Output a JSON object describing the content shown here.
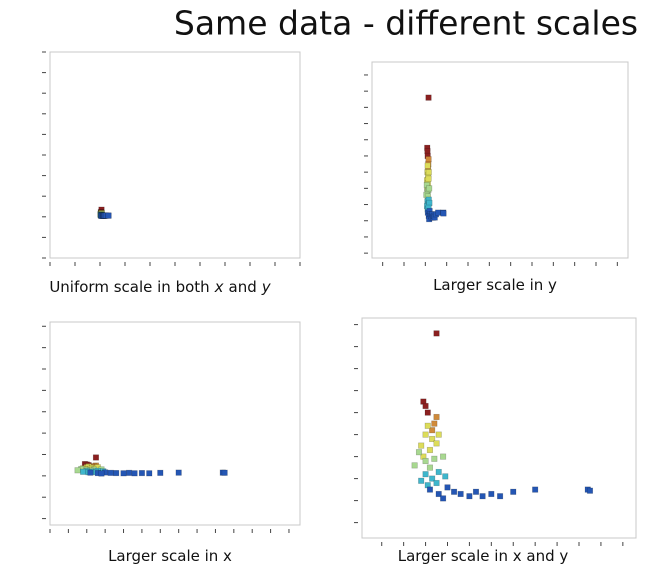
{
  "title": "Same data - different scales",
  "chart_data": [
    {
      "type": "scatter",
      "title": [
        "Uniform scale in both",
        "x",
        "and",
        "y"
      ],
      "xlim": [
        -50,
        200
      ],
      "ylim": [
        -50,
        200
      ],
      "xticks": [
        -50,
        -25,
        0,
        25,
        50,
        75,
        100,
        125,
        150,
        175,
        200
      ],
      "yticks": [
        -50,
        -25,
        0,
        25,
        50,
        75,
        100,
        125,
        150,
        175,
        200
      ],
      "series": [
        {
          "color": "#8b2020",
          "x": [
            1.5,
            0.9,
            1.0,
            1.1
          ],
          "values": [
            8.6,
            5.5,
            5.3,
            5.0
          ]
        },
        {
          "color": "#d08a3a",
          "x": [
            1.5,
            1.4,
            1.3
          ],
          "values": [
            4.8,
            4.5,
            4.2
          ]
        },
        {
          "color": "#dcdc5a",
          "x": [
            1.1,
            1.0,
            1.3,
            0.8,
            1.2,
            1.5,
            0.9,
            1.6
          ],
          "values": [
            4.4,
            4.0,
            3.8,
            3.5,
            3.3,
            3.6,
            3.0,
            4.0
          ]
        },
        {
          "color": "#a8d890",
          "x": [
            0.7,
            1.0,
            1.4,
            0.5,
            1.2,
            1.8
          ],
          "values": [
            3.2,
            2.8,
            2.9,
            2.6,
            2.5,
            3.0
          ]
        },
        {
          "color": "#3fb6cc",
          "x": [
            1.0,
            1.3,
            1.6,
            0.8,
            1.9,
            1.1,
            1.5
          ],
          "values": [
            2.2,
            2.0,
            2.3,
            1.9,
            2.1,
            1.7,
            1.8
          ]
        },
        {
          "color": "#2456b4",
          "x": [
            1.2,
            1.6,
            2.0,
            2.3,
            1.8,
            2.6,
            3.0,
            3.3,
            3.6,
            4.0,
            4.4,
            5.0,
            6.0,
            8.4,
            8.5
          ],
          "values": [
            1.5,
            1.3,
            1.6,
            1.4,
            1.1,
            1.3,
            1.2,
            1.4,
            1.2,
            1.3,
            1.2,
            1.4,
            1.5,
            1.5,
            1.45
          ]
        }
      ]
    },
    {
      "type": "scatter",
      "title": [
        "Larger scale in y"
      ],
      "xlim": [
        -25,
        95
      ],
      "ylim": [
        -1.3,
        10.8
      ],
      "xticks": [
        -20,
        -10,
        0,
        10,
        20,
        30,
        40,
        50,
        60,
        70,
        80,
        90
      ],
      "yticks": [
        -1,
        0,
        1,
        2,
        3,
        4,
        5,
        6,
        7,
        8,
        9,
        10
      ],
      "series": [
        {
          "color": "#8b2020",
          "x": [
            1.5,
            0.9,
            1.0,
            1.1
          ],
          "values": [
            8.6,
            5.5,
            5.3,
            5.0
          ]
        },
        {
          "color": "#d08a3a",
          "x": [
            1.5,
            1.4,
            1.3
          ],
          "values": [
            4.8,
            4.5,
            4.2
          ]
        },
        {
          "color": "#dcdc5a",
          "x": [
            1.1,
            1.0,
            1.3,
            0.8,
            1.2,
            1.5,
            0.9,
            1.6
          ],
          "values": [
            4.4,
            4.0,
            3.8,
            3.5,
            3.3,
            3.6,
            3.0,
            4.0
          ]
        },
        {
          "color": "#a8d890",
          "x": [
            0.7,
            1.0,
            1.4,
            0.5,
            1.2,
            1.8
          ],
          "values": [
            3.2,
            2.8,
            2.9,
            2.6,
            2.5,
            3.0
          ]
        },
        {
          "color": "#3fb6cc",
          "x": [
            1.0,
            1.3,
            1.6,
            0.8,
            1.9,
            1.1,
            1.5
          ],
          "values": [
            2.2,
            2.0,
            2.3,
            1.9,
            2.1,
            1.7,
            1.8
          ]
        },
        {
          "color": "#2456b4",
          "x": [
            1.2,
            1.6,
            2.0,
            2.3,
            1.8,
            2.6,
            3.0,
            3.3,
            3.6,
            4.0,
            4.4,
            5.0,
            6.0,
            8.4,
            8.5
          ],
          "values": [
            1.5,
            1.3,
            1.6,
            1.4,
            1.1,
            1.3,
            1.2,
            1.4,
            1.2,
            1.3,
            1.2,
            1.4,
            1.5,
            1.5,
            1.45
          ]
        }
      ]
    },
    {
      "type": "scatter",
      "title": [
        "Larger scale in x"
      ],
      "xlim": [
        -1,
        12.6
      ],
      "ylim": [
        -23,
        72
      ],
      "xticks": [
        -1,
        0,
        1,
        2,
        3,
        4,
        5,
        6,
        7,
        8,
        9,
        10,
        11,
        12
      ],
      "yticks": [
        -20,
        -10,
        0,
        10,
        20,
        30,
        40,
        50,
        60,
        70
      ],
      "series": [
        {
          "color": "#8b2020",
          "x": [
            1.5,
            0.9,
            1.0,
            1.1
          ],
          "values": [
            8.6,
            5.5,
            5.3,
            5.0
          ]
        },
        {
          "color": "#d08a3a",
          "x": [
            1.5,
            1.4,
            1.3
          ],
          "values": [
            4.8,
            4.5,
            4.2
          ]
        },
        {
          "color": "#dcdc5a",
          "x": [
            1.1,
            1.0,
            1.3,
            0.8,
            1.2,
            1.5,
            0.9,
            1.6
          ],
          "values": [
            4.4,
            4.0,
            3.8,
            3.5,
            3.3,
            3.6,
            3.0,
            4.0
          ]
        },
        {
          "color": "#a8d890",
          "x": [
            0.7,
            1.0,
            1.4,
            0.5,
            1.2,
            1.8
          ],
          "values": [
            3.2,
            2.8,
            2.9,
            2.6,
            2.5,
            3.0
          ]
        },
        {
          "color": "#3fb6cc",
          "x": [
            1.0,
            1.3,
            1.6,
            0.8,
            1.9,
            1.1,
            1.5
          ],
          "values": [
            2.2,
            2.0,
            2.3,
            1.9,
            2.1,
            1.7,
            1.8
          ]
        },
        {
          "color": "#2456b4",
          "x": [
            1.2,
            1.6,
            2.0,
            2.3,
            1.8,
            2.6,
            3.0,
            3.3,
            3.6,
            4.0,
            4.4,
            5.0,
            6.0,
            8.4,
            8.5
          ],
          "values": [
            1.5,
            1.3,
            1.6,
            1.4,
            1.1,
            1.3,
            1.2,
            1.4,
            1.2,
            1.3,
            1.2,
            1.4,
            1.5,
            1.5,
            1.45
          ]
        }
      ]
    },
    {
      "type": "scatter",
      "title": [
        "Larger scale in x and y"
      ],
      "xlim": [
        -1.9,
        10.6
      ],
      "ylim": [
        -0.7,
        9.3
      ],
      "xticks": [
        -1,
        0,
        1,
        2,
        3,
        4,
        5,
        6,
        7,
        8,
        9,
        10
      ],
      "yticks": [
        0,
        1,
        2,
        3,
        4,
        5,
        6,
        7,
        8,
        9
      ],
      "series": [
        {
          "color": "#8b2020",
          "x": [
            1.5,
            0.9,
            1.0,
            1.1
          ],
          "values": [
            8.6,
            5.5,
            5.3,
            5.0
          ]
        },
        {
          "color": "#d08a3a",
          "x": [
            1.5,
            1.4,
            1.3
          ],
          "values": [
            4.8,
            4.5,
            4.2
          ]
        },
        {
          "color": "#dcdc5a",
          "x": [
            1.1,
            1.0,
            1.3,
            0.8,
            1.2,
            1.5,
            0.9,
            1.6
          ],
          "values": [
            4.4,
            4.0,
            3.8,
            3.5,
            3.3,
            3.6,
            3.0,
            4.0
          ]
        },
        {
          "color": "#a8d890",
          "x": [
            0.7,
            1.0,
            1.4,
            0.5,
            1.2,
            1.8
          ],
          "values": [
            3.2,
            2.8,
            2.9,
            2.6,
            2.5,
            3.0
          ]
        },
        {
          "color": "#3fb6cc",
          "x": [
            1.0,
            1.3,
            1.6,
            0.8,
            1.9,
            1.1,
            1.5
          ],
          "values": [
            2.2,
            2.0,
            2.3,
            1.9,
            2.1,
            1.7,
            1.8
          ]
        },
        {
          "color": "#2456b4",
          "x": [
            1.2,
            1.6,
            2.0,
            2.3,
            1.8,
            2.6,
            3.0,
            3.3,
            3.6,
            4.0,
            4.4,
            5.0,
            6.0,
            8.4,
            8.5
          ],
          "values": [
            1.5,
            1.3,
            1.6,
            1.4,
            1.1,
            1.3,
            1.2,
            1.4,
            1.2,
            1.3,
            1.2,
            1.4,
            1.5,
            1.5,
            1.45
          ]
        }
      ]
    }
  ]
}
